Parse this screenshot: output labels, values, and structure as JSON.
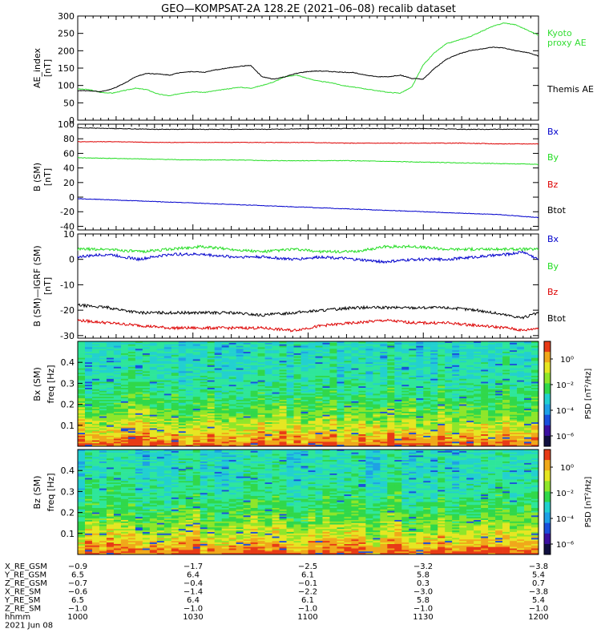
{
  "title": "GEO—KOMPSAT-2A 128.2E (2021–06–08) recalib dataset",
  "colors": {
    "black": "#000000",
    "red": "#dd0000",
    "green": "#22dd22",
    "blue": "#0000cc",
    "bright_green": "#33dd33"
  },
  "chart_data": [
    {
      "type": "line",
      "ylabel": [
        "AE_index",
        "[nT]"
      ],
      "ylim": [
        0,
        300
      ],
      "yticks": [
        0,
        50,
        100,
        150,
        200,
        250,
        300
      ],
      "xlim": [
        0,
        120
      ],
      "series": [
        {
          "name": "Kyoto\nproxy AE",
          "color": "#33dd33",
          "x": [
            0,
            3,
            6,
            9,
            12,
            15,
            18,
            21,
            24,
            27,
            30,
            33,
            36,
            39,
            42,
            45,
            48,
            51,
            54,
            57,
            60,
            63,
            66,
            69,
            72,
            75,
            78,
            81,
            84,
            87,
            90,
            93,
            96,
            99,
            102,
            105,
            108,
            111,
            114,
            117,
            120
          ],
          "values": [
            90,
            88,
            80,
            78,
            85,
            92,
            88,
            75,
            70,
            78,
            82,
            80,
            85,
            90,
            95,
            92,
            100,
            110,
            125,
            130,
            120,
            112,
            108,
            100,
            95,
            90,
            85,
            80,
            78,
            95,
            160,
            195,
            220,
            230,
            240,
            255,
            270,
            280,
            275,
            260,
            245
          ]
        },
        {
          "name": "Themis AE",
          "color": "#000000",
          "x": [
            0,
            3,
            6,
            9,
            12,
            15,
            18,
            21,
            24,
            27,
            30,
            33,
            36,
            39,
            42,
            45,
            48,
            51,
            54,
            57,
            60,
            63,
            66,
            69,
            72,
            75,
            78,
            81,
            84,
            87,
            90,
            93,
            96,
            99,
            102,
            105,
            108,
            111,
            114,
            117,
            120
          ],
          "values": [
            85,
            85,
            82,
            90,
            105,
            125,
            135,
            133,
            130,
            138,
            140,
            138,
            145,
            150,
            155,
            158,
            125,
            118,
            125,
            135,
            140,
            142,
            140,
            138,
            137,
            130,
            125,
            125,
            130,
            120,
            118,
            150,
            175,
            190,
            200,
            205,
            210,
            208,
            200,
            195,
            185
          ]
        }
      ]
    },
    {
      "type": "line",
      "ylabel": [
        "B (SM)",
        "[nT]"
      ],
      "ylim": [
        -45,
        100
      ],
      "yticks": [
        -40,
        -20,
        0,
        20,
        40,
        60,
        80,
        100
      ],
      "xlim": [
        0,
        120
      ],
      "series": [
        {
          "name": "Bx",
          "color": "#0000cc",
          "x": [
            0,
            10,
            20,
            30,
            40,
            50,
            60,
            70,
            80,
            90,
            100,
            110,
            120
          ],
          "values": [
            -2,
            -4,
            -6,
            -8,
            -10,
            -12,
            -14,
            -16,
            -18,
            -20,
            -22,
            -24,
            -28
          ]
        },
        {
          "name": "By",
          "color": "#22dd22",
          "x": [
            0,
            10,
            20,
            30,
            40,
            50,
            60,
            70,
            80,
            90,
            100,
            110,
            120
          ],
          "values": [
            54,
            53,
            52,
            51,
            51,
            50,
            50,
            50,
            49,
            48,
            47,
            46,
            45
          ]
        },
        {
          "name": "Bz",
          "color": "#dd0000",
          "x": [
            0,
            10,
            20,
            30,
            40,
            50,
            60,
            70,
            80,
            90,
            100,
            110,
            120
          ],
          "values": [
            76,
            76,
            75,
            75,
            75,
            75,
            75,
            74,
            74,
            74,
            74,
            73,
            73
          ]
        },
        {
          "name": "Btot",
          "color": "#000000",
          "x": [
            0,
            10,
            20,
            30,
            40,
            50,
            60,
            70,
            80,
            90,
            100,
            110,
            120
          ],
          "values": [
            95,
            94,
            93,
            93,
            93,
            93,
            94,
            94,
            94,
            94,
            93,
            93,
            93
          ]
        }
      ]
    },
    {
      "type": "line",
      "ylabel": [
        "B (SM)—IGRF (SM)",
        "[nT]"
      ],
      "ylim": [
        -31,
        10
      ],
      "yticks": [
        -30,
        -20,
        -10,
        0,
        10
      ],
      "xlim": [
        0,
        120
      ],
      "series": [
        {
          "name": "Bx",
          "color": "#0000cc",
          "x": [
            0,
            8,
            16,
            24,
            32,
            40,
            48,
            56,
            64,
            72,
            80,
            88,
            96,
            104,
            112,
            116,
            120
          ],
          "values": [
            1,
            2,
            0,
            2,
            2,
            1,
            1,
            0,
            1,
            0,
            -1,
            0,
            0,
            1,
            2,
            3,
            0
          ]
        },
        {
          "name": "By",
          "color": "#22dd22",
          "x": [
            0,
            8,
            16,
            24,
            32,
            40,
            48,
            56,
            64,
            72,
            80,
            88,
            96,
            104,
            112,
            116,
            120
          ],
          "values": [
            4,
            4,
            3,
            4,
            5,
            4,
            3,
            4,
            3,
            3,
            5,
            5,
            4,
            4,
            4,
            4,
            4
          ]
        },
        {
          "name": "Bz",
          "color": "#dd0000",
          "x": [
            0,
            8,
            16,
            24,
            32,
            40,
            48,
            56,
            64,
            72,
            80,
            88,
            96,
            104,
            112,
            116,
            120
          ],
          "values": [
            -24,
            -25,
            -26,
            -27,
            -27,
            -27,
            -27,
            -28,
            -26,
            -25,
            -24,
            -25,
            -25,
            -26,
            -27,
            -28,
            -27
          ]
        },
        {
          "name": "Btot",
          "color": "#000000",
          "x": [
            0,
            8,
            16,
            24,
            32,
            40,
            48,
            56,
            64,
            72,
            80,
            88,
            96,
            104,
            112,
            116,
            120
          ],
          "values": [
            -18,
            -19,
            -21,
            -21,
            -21,
            -21,
            -22,
            -21,
            -20,
            -19,
            -19,
            -19,
            -19,
            -20,
            -22,
            -23,
            -21
          ]
        }
      ]
    },
    {
      "type": "heatmap",
      "ylabel": [
        "Bx (SM)",
        "freq [Hz]"
      ],
      "yticks": [
        0.1,
        0.2,
        0.3,
        0.4
      ],
      "ylim": [
        0,
        0.5
      ],
      "colorbar": {
        "label": "PSD [nT²/Hz]",
        "ticks": [
          "10⁰",
          "10⁻²",
          "10⁻⁴",
          "10⁻⁶"
        ]
      }
    },
    {
      "type": "heatmap",
      "ylabel": [
        "Bz (SM)",
        "freq [Hz]"
      ],
      "yticks": [
        0.1,
        0.2,
        0.3,
        0.4
      ],
      "ylim": [
        0,
        0.5
      ],
      "colorbar": {
        "label": "PSD [nT²/Hz]",
        "ticks": [
          "10⁰",
          "10⁻²",
          "10⁻⁴",
          "10⁻⁶"
        ]
      }
    }
  ],
  "ephemeris": {
    "labels": [
      "X_RE_GSM",
      "Y_RE_GSM",
      "Z_RE_GSM",
      "X_RE_SM",
      "Y_RE_SM",
      "Z_RE_SM",
      "hhmm",
      "2021 Jun 08"
    ],
    "columns": [
      [
        "−0.9",
        "6.5",
        "−0.7",
        "−0.6",
        "6.5",
        "−1.0",
        "1000"
      ],
      [
        "−1.7",
        "6.4",
        "−0.4",
        "−1.4",
        "6.4",
        "−1.0",
        "1030"
      ],
      [
        "−2.5",
        "6.1",
        "−0.1",
        "−2.2",
        "6.1",
        "−1.0",
        "1100"
      ],
      [
        "−3.2",
        "5.8",
        "0.3",
        "−3.0",
        "5.8",
        "−1.0",
        "1130"
      ],
      [
        "−3.8",
        "5.4",
        "0.7",
        "−3.8",
        "5.4",
        "−1.0",
        "1200"
      ]
    ]
  }
}
